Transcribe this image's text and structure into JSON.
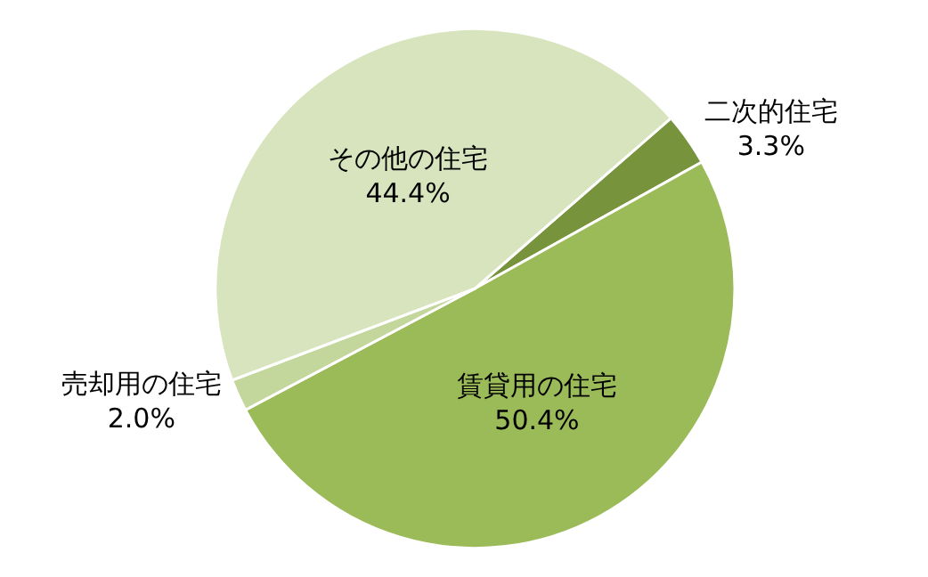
{
  "chart_data": {
    "type": "pie",
    "categories": [
      "二次的住宅",
      "賃貸用の住宅",
      "売却用の住宅",
      "その他の住宅"
    ],
    "values": [
      3.3,
      50.4,
      2.0,
      44.4
    ],
    "value_labels": [
      "3.3%",
      "50.4%",
      "2.0%",
      "44.4%"
    ],
    "colors": [
      "#77933c",
      "#9bbb59",
      "#c3d69b",
      "#d7e4bd"
    ],
    "legend": false
  }
}
